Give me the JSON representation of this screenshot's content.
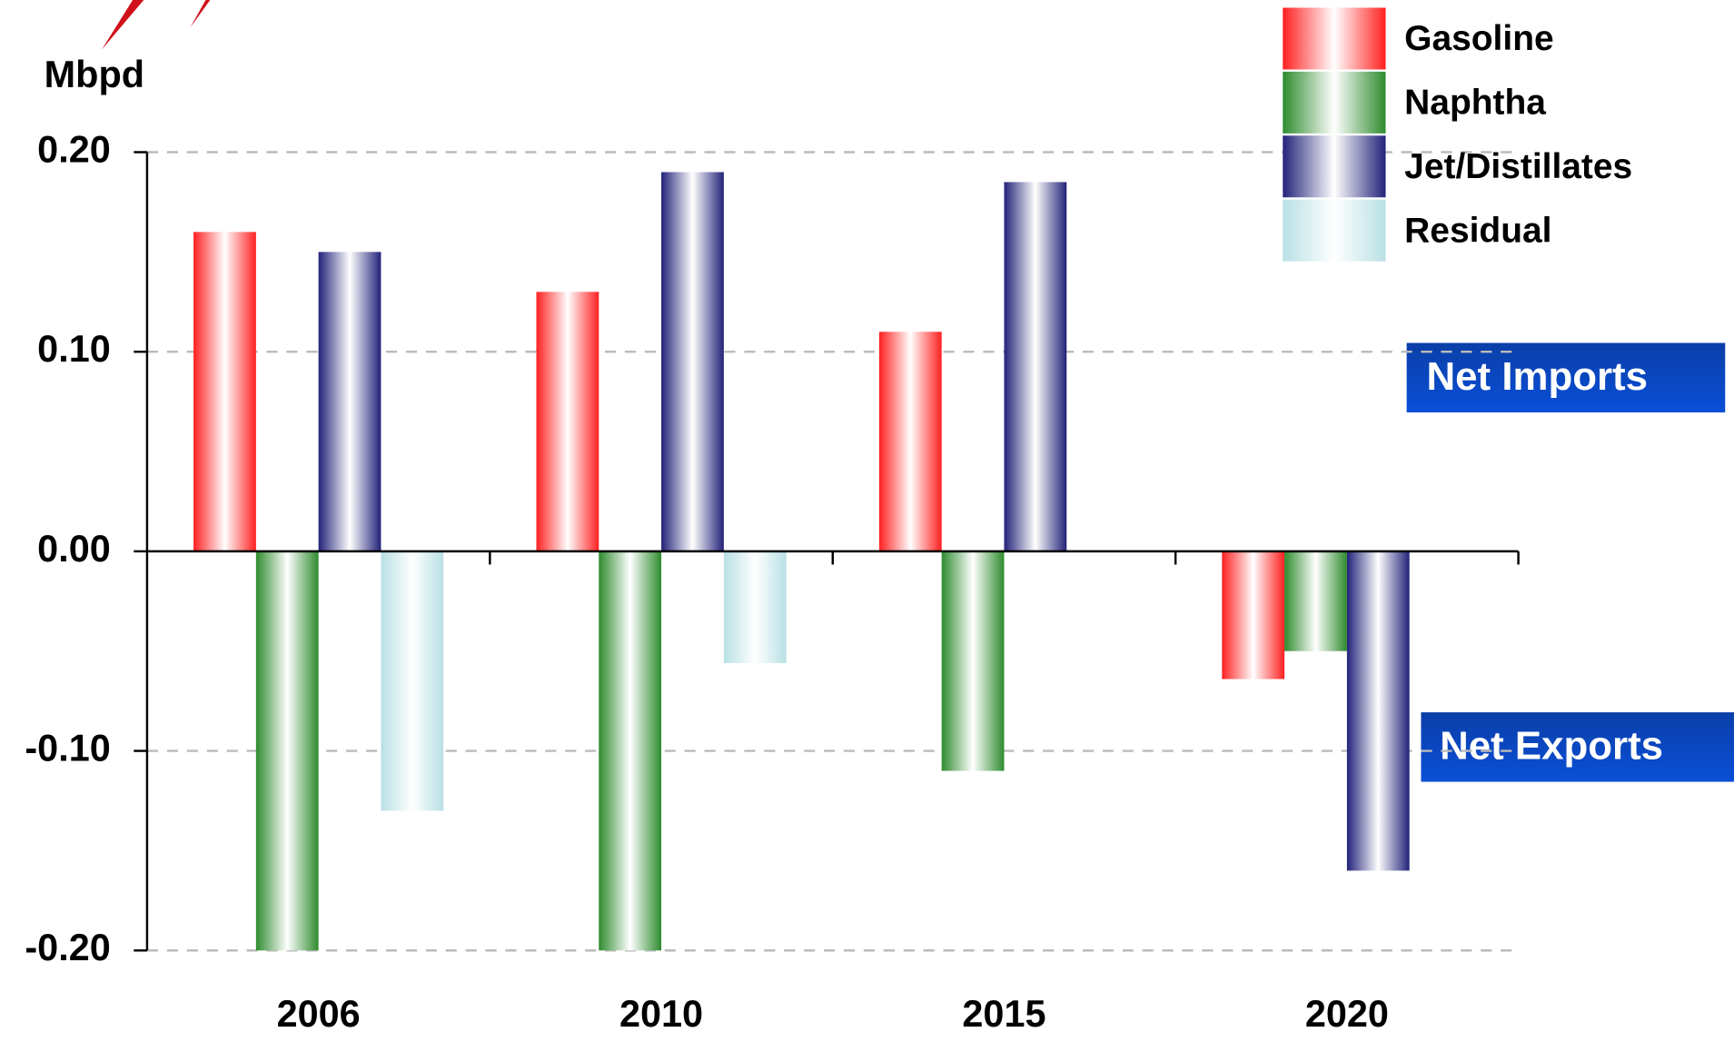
{
  "chart_data": {
    "type": "bar",
    "y_label": "Mbpd",
    "categories": [
      "2006",
      "2010",
      "2015",
      "2020"
    ],
    "series": [
      {
        "name": "Gasoline",
        "color": "#ff2020",
        "values": [
          0.16,
          0.13,
          0.11,
          -0.064
        ]
      },
      {
        "name": "Naphtha",
        "color": "#2e8b2e",
        "values": [
          -0.2,
          -0.2,
          -0.11,
          -0.05
        ]
      },
      {
        "name": "Jet/Distillates",
        "color": "#22227a",
        "values": [
          0.15,
          0.19,
          0.185,
          -0.16
        ]
      },
      {
        "name": "Residual",
        "color": "#b8e0e4",
        "values": [
          -0.13,
          -0.056,
          null,
          null
        ]
      }
    ],
    "ylim": [
      -0.2,
      0.2
    ],
    "yticks": [
      {
        "value": -0.2,
        "label": "-0.20"
      },
      {
        "value": -0.1,
        "label": "-0.10"
      },
      {
        "value": 0,
        "label": "0.00"
      },
      {
        "value": 0.1,
        "label": "0.10"
      },
      {
        "value": 0.2,
        "label": "0.20"
      }
    ],
    "grid": true,
    "legend": "top-right",
    "annotations": [
      "Net Imports",
      "Net Exports"
    ]
  }
}
